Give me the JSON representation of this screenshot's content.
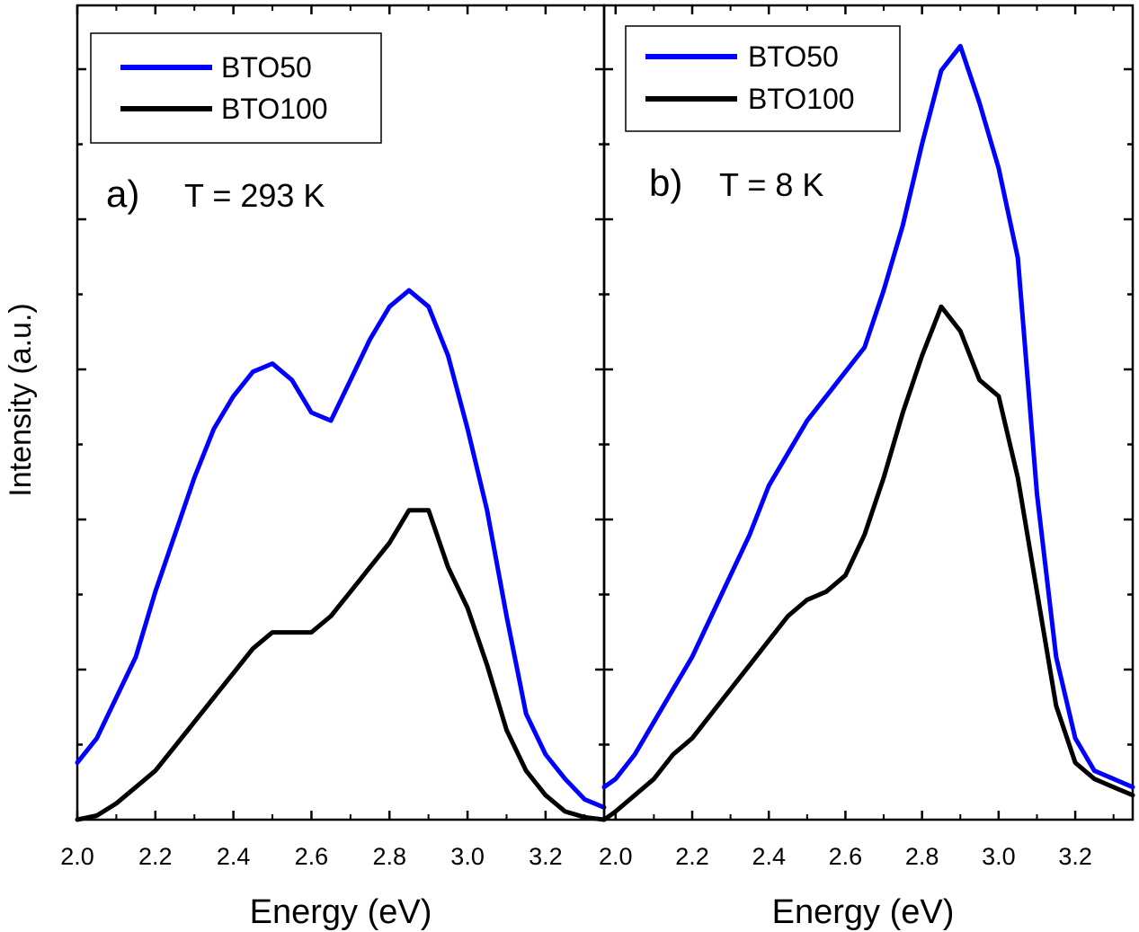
{
  "ylabel": "Intensity (a.u.)",
  "chart_data": [
    {
      "type": "line",
      "panel_label": "a)",
      "annotation": "T = 293 K",
      "xlabel": "Energy (eV)",
      "ylabel": "Intensity (a.u.)",
      "xlim": [
        2.0,
        3.35
      ],
      "ylim": [
        0,
        1
      ],
      "xticks": [
        "2.0",
        "2.2",
        "2.4",
        "2.6",
        "2.8",
        "3.0",
        "3.2"
      ],
      "legend": "top-left",
      "grid": false,
      "series": [
        {
          "name": "BTO50",
          "color": "#0000ff",
          "x": [
            2.0,
            2.05,
            2.1,
            2.15,
            2.2,
            2.25,
            2.3,
            2.35,
            2.4,
            2.45,
            2.5,
            2.55,
            2.6,
            2.65,
            2.7,
            2.75,
            2.8,
            2.85,
            2.9,
            2.95,
            3.0,
            3.05,
            3.1,
            3.15,
            3.2,
            3.25,
            3.3,
            3.35
          ],
          "values": [
            0.07,
            0.1,
            0.15,
            0.2,
            0.28,
            0.35,
            0.42,
            0.48,
            0.52,
            0.55,
            0.56,
            0.54,
            0.5,
            0.49,
            0.54,
            0.59,
            0.63,
            0.65,
            0.63,
            0.57,
            0.48,
            0.38,
            0.25,
            0.13,
            0.08,
            0.05,
            0.025,
            0.015
          ]
        },
        {
          "name": "BTO100",
          "color": "#000000",
          "x": [
            2.0,
            2.05,
            2.1,
            2.15,
            2.2,
            2.25,
            2.3,
            2.35,
            2.4,
            2.45,
            2.5,
            2.55,
            2.6,
            2.65,
            2.7,
            2.75,
            2.8,
            2.85,
            2.9,
            2.95,
            3.0,
            3.05,
            3.1,
            3.15,
            3.2,
            3.25,
            3.3,
            3.35
          ],
          "values": [
            0.0,
            0.005,
            0.02,
            0.04,
            0.06,
            0.09,
            0.12,
            0.15,
            0.18,
            0.21,
            0.23,
            0.23,
            0.23,
            0.25,
            0.28,
            0.31,
            0.34,
            0.38,
            0.38,
            0.31,
            0.26,
            0.19,
            0.11,
            0.06,
            0.03,
            0.01,
            0.003,
            0.0
          ]
        }
      ]
    },
    {
      "type": "line",
      "panel_label": "b)",
      "annotation": "T = 8 K",
      "xlabel": "Energy (eV)",
      "ylabel": "Intensity (a.u.)",
      "xlim": [
        1.97,
        3.35
      ],
      "ylim": [
        0,
        1
      ],
      "xticks": [
        "2.0",
        "2.2",
        "2.4",
        "2.6",
        "2.8",
        "3.0",
        "3.2"
      ],
      "legend": "top-left",
      "grid": false,
      "series": [
        {
          "name": "BTO50",
          "color": "#0000ff",
          "x": [
            1.97,
            2.0,
            2.05,
            2.1,
            2.15,
            2.2,
            2.25,
            2.3,
            2.35,
            2.4,
            2.45,
            2.5,
            2.55,
            2.6,
            2.65,
            2.7,
            2.75,
            2.8,
            2.85,
            2.9,
            2.95,
            3.0,
            3.05,
            3.1,
            3.15,
            3.2,
            3.25,
            3.3,
            3.35
          ],
          "values": [
            0.04,
            0.05,
            0.08,
            0.12,
            0.16,
            0.2,
            0.25,
            0.3,
            0.35,
            0.41,
            0.45,
            0.49,
            0.52,
            0.55,
            0.58,
            0.65,
            0.73,
            0.83,
            0.92,
            0.95,
            0.88,
            0.8,
            0.69,
            0.4,
            0.2,
            0.1,
            0.06,
            0.05,
            0.04
          ]
        },
        {
          "name": "BTO100",
          "color": "#000000",
          "x": [
            1.97,
            2.0,
            2.05,
            2.1,
            2.15,
            2.2,
            2.25,
            2.3,
            2.35,
            2.4,
            2.45,
            2.5,
            2.55,
            2.6,
            2.65,
            2.7,
            2.75,
            2.8,
            2.85,
            2.9,
            2.95,
            3.0,
            3.05,
            3.1,
            3.15,
            3.2,
            3.25,
            3.3,
            3.35
          ],
          "values": [
            0.0,
            0.01,
            0.03,
            0.05,
            0.08,
            0.1,
            0.13,
            0.16,
            0.19,
            0.22,
            0.25,
            0.27,
            0.28,
            0.3,
            0.35,
            0.42,
            0.5,
            0.57,
            0.63,
            0.6,
            0.54,
            0.52,
            0.42,
            0.28,
            0.14,
            0.07,
            0.05,
            0.04,
            0.03
          ]
        }
      ]
    }
  ]
}
